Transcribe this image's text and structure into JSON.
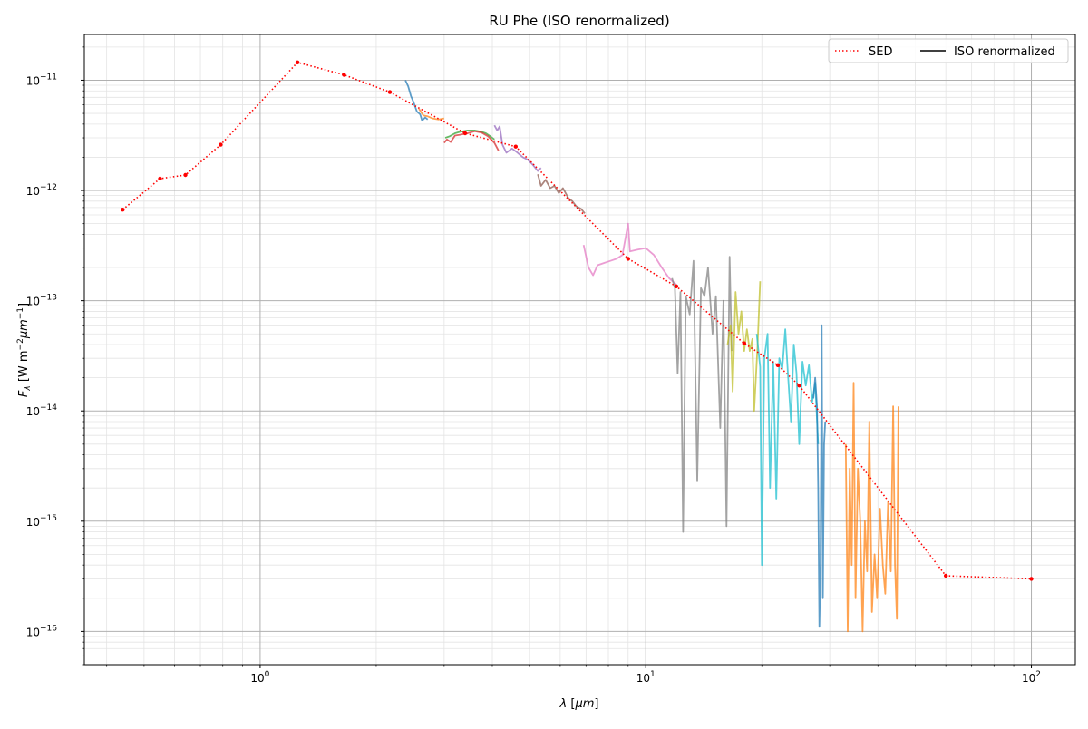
{
  "chart_data": {
    "type": "line",
    "title": "RU Phe (ISO renormalized)",
    "xlabel": "λ [μm]",
    "ylabel": "F_λ [W m^-2 μm^-1]",
    "x_scale": "log",
    "y_scale": "log",
    "xlim": [
      0.35,
      130
    ],
    "ylim": [
      5e-17,
      2.6e-11
    ],
    "grid": true,
    "x_ticks": [
      {
        "value": 1,
        "base": "10",
        "exp": "0"
      },
      {
        "value": 10,
        "base": "10",
        "exp": "1"
      },
      {
        "value": 100,
        "base": "10",
        "exp": "2"
      }
    ],
    "y_ticks": [
      {
        "value": 1e-16,
        "base": "10",
        "exp": "−16"
      },
      {
        "value": 1e-15,
        "base": "10",
        "exp": "−15"
      },
      {
        "value": 1e-14,
        "base": "10",
        "exp": "−14"
      },
      {
        "value": 1e-13,
        "base": "10",
        "exp": "−13"
      },
      {
        "value": 1e-12,
        "base": "10",
        "exp": "−12"
      },
      {
        "value": 1e-11,
        "base": "10",
        "exp": "−11"
      }
    ],
    "legend": {
      "placement": "top-right",
      "entries": [
        {
          "label": "SED",
          "style": "dotted",
          "color": "#ff0000"
        },
        {
          "label": "ISO renormalized",
          "style": "solid",
          "color": "#000000"
        }
      ]
    },
    "sed": {
      "name": "SED",
      "color": "#ff0000",
      "points": [
        [
          0.44,
          6.7e-13
        ],
        [
          0.55,
          1.28e-12
        ],
        [
          0.64,
          1.38e-12
        ],
        [
          0.79,
          2.6e-12
        ],
        [
          1.25,
          1.45e-11
        ],
        [
          1.65,
          1.12e-11
        ],
        [
          2.17,
          7.8e-12
        ],
        [
          3.4,
          3.3e-12
        ],
        [
          4.6,
          2.5e-12
        ],
        [
          9.0,
          2.4e-13
        ],
        [
          12.0,
          1.35e-13
        ],
        [
          18.0,
          4.1e-14
        ],
        [
          22.0,
          2.6e-14
        ],
        [
          25.0,
          1.7e-14
        ],
        [
          60.0,
          3.2e-16
        ],
        [
          100.0,
          3e-16
        ]
      ]
    },
    "iso_segments": [
      {
        "color": "#1f77b4",
        "points": [
          [
            2.38,
            1e-11
          ],
          [
            2.42,
            8.8e-12
          ],
          [
            2.46,
            7.2e-12
          ],
          [
            2.5,
            6.3e-12
          ],
          [
            2.55,
            5.2e-12
          ],
          [
            2.6,
            4.9e-12
          ],
          [
            2.63,
            4.3e-12
          ],
          [
            2.68,
            4.6e-12
          ],
          [
            2.72,
            4.4e-12
          ]
        ]
      },
      {
        "color": "#ff7f0e",
        "points": [
          [
            2.58,
            5.5e-12
          ],
          [
            2.65,
            4.8e-12
          ],
          [
            2.72,
            4.7e-12
          ],
          [
            2.8,
            4.5e-12
          ],
          [
            2.9,
            4.4e-12
          ],
          [
            3.0,
            4.5e-12
          ]
        ]
      },
      {
        "color": "#2ca02c",
        "points": [
          [
            3.02,
            3e-12
          ],
          [
            3.1,
            3.1e-12
          ],
          [
            3.2,
            3.3e-12
          ],
          [
            3.3,
            3.4e-12
          ],
          [
            3.45,
            3.5e-12
          ],
          [
            3.6,
            3.5e-12
          ],
          [
            3.75,
            3.4e-12
          ],
          [
            3.85,
            3.3e-12
          ],
          [
            3.95,
            3.1e-12
          ],
          [
            4.05,
            2.9e-12
          ]
        ]
      },
      {
        "color": "#d62728",
        "points": [
          [
            3.0,
            2.7e-12
          ],
          [
            3.05,
            2.9e-12
          ],
          [
            3.12,
            2.75e-12
          ],
          [
            3.2,
            3.15e-12
          ],
          [
            3.3,
            3.2e-12
          ],
          [
            3.45,
            3.3e-12
          ],
          [
            3.6,
            3.45e-12
          ],
          [
            3.75,
            3.35e-12
          ],
          [
            3.9,
            3.1e-12
          ],
          [
            4.05,
            2.7e-12
          ],
          [
            4.15,
            2.3e-12
          ]
        ]
      },
      {
        "color": "#9467bd",
        "points": [
          [
            4.05,
            3.9e-12
          ],
          [
            4.12,
            3.5e-12
          ],
          [
            4.18,
            3.8e-12
          ],
          [
            4.25,
            2.6e-12
          ],
          [
            4.35,
            2.2e-12
          ],
          [
            4.5,
            2.4e-12
          ],
          [
            4.65,
            2.2e-12
          ],
          [
            4.8,
            2e-12
          ],
          [
            4.95,
            1.9e-12
          ],
          [
            5.1,
            1.7e-12
          ],
          [
            5.25,
            1.5e-12
          ],
          [
            5.35,
            1.6e-12
          ]
        ]
      },
      {
        "color": "#8c564b",
        "points": [
          [
            5.25,
            1.4e-12
          ],
          [
            5.35,
            1.1e-12
          ],
          [
            5.5,
            1.25e-12
          ],
          [
            5.65,
            1.05e-12
          ],
          [
            5.8,
            1.1e-12
          ],
          [
            5.95,
            9.5e-13
          ],
          [
            6.1,
            1.05e-12
          ],
          [
            6.3,
            8.5e-13
          ],
          [
            6.45,
            8e-13
          ],
          [
            6.6,
            7.2e-13
          ],
          [
            6.8,
            6.8e-13
          ],
          [
            6.95,
            6.2e-13
          ]
        ]
      },
      {
        "color": "#e377c2",
        "points": [
          [
            6.9,
            3.2e-13
          ],
          [
            7.1,
            2e-13
          ],
          [
            7.3,
            1.7e-13
          ],
          [
            7.5,
            2.1e-13
          ],
          [
            7.8,
            2.2e-13
          ],
          [
            8.1,
            2.3e-13
          ],
          [
            8.4,
            2.4e-13
          ],
          [
            8.7,
            2.6e-13
          ],
          [
            9.0,
            5e-13
          ],
          [
            9.1,
            2.8e-13
          ],
          [
            9.5,
            2.9e-13
          ],
          [
            10.0,
            3e-13
          ],
          [
            10.5,
            2.6e-13
          ],
          [
            11.0,
            2e-13
          ],
          [
            11.5,
            1.6e-13
          ],
          [
            12.0,
            1.4e-13
          ]
        ]
      },
      {
        "color": "#7f7f7f",
        "points": [
          [
            11.7,
            1.6e-13
          ],
          [
            11.9,
            1.3e-13
          ],
          [
            12.1,
            2.2e-14
          ],
          [
            12.3,
            1.2e-13
          ],
          [
            12.5,
            8e-16
          ],
          [
            12.7,
            1.1e-13
          ],
          [
            13.0,
            7.5e-14
          ],
          [
            13.3,
            2.3e-13
          ],
          [
            13.6,
            2.3e-15
          ],
          [
            13.9,
            1.3e-13
          ],
          [
            14.2,
            1.1e-13
          ],
          [
            14.5,
            2e-13
          ],
          [
            14.9,
            5e-14
          ],
          [
            15.2,
            1.1e-13
          ],
          [
            15.6,
            7e-15
          ],
          [
            15.9,
            1e-13
          ],
          [
            16.2,
            9e-16
          ],
          [
            16.5,
            2.5e-13
          ],
          [
            16.7,
            3.5e-14
          ]
        ]
      },
      {
        "color": "#bcbd22",
        "points": [
          [
            16.3,
            4e-14
          ],
          [
            16.6,
            6e-14
          ],
          [
            16.8,
            1.5e-14
          ],
          [
            17.1,
            1.2e-13
          ],
          [
            17.4,
            5e-14
          ],
          [
            17.7,
            8e-14
          ],
          [
            18.0,
            3.5e-14
          ],
          [
            18.3,
            5.5e-14
          ],
          [
            18.6,
            3.5e-14
          ],
          [
            18.9,
            4.5e-14
          ],
          [
            19.1,
            1e-14
          ],
          [
            19.5,
            4e-14
          ],
          [
            19.8,
            1.5e-13
          ]
        ]
      },
      {
        "color": "#17becf",
        "points": [
          [
            19.4,
            5e-14
          ],
          [
            19.8,
            2.5e-14
          ],
          [
            20.0,
            4e-16
          ],
          [
            20.3,
            3e-14
          ],
          [
            20.7,
            5e-14
          ],
          [
            21.0,
            2e-15
          ],
          [
            21.4,
            2.8e-14
          ],
          [
            21.8,
            1.6e-15
          ],
          [
            22.2,
            3e-14
          ],
          [
            22.6,
            2.4e-14
          ],
          [
            23.0,
            5.5e-14
          ],
          [
            23.4,
            2e-14
          ],
          [
            23.8,
            8e-15
          ],
          [
            24.2,
            4e-14
          ],
          [
            24.6,
            2.2e-14
          ],
          [
            25.0,
            5e-15
          ],
          [
            25.5,
            2.8e-14
          ],
          [
            26.0,
            1.7e-14
          ],
          [
            26.5,
            2.6e-14
          ],
          [
            27.0,
            1.2e-14
          ],
          [
            27.5,
            1.8e-14
          ],
          [
            28.0,
            5e-15
          ]
        ]
      },
      {
        "color": "#1f77b4",
        "points": [
          [
            27.2,
            1.3e-14
          ],
          [
            27.5,
            2e-14
          ],
          [
            27.8,
            1.1e-14
          ],
          [
            28.0,
            2e-15
          ],
          [
            28.2,
            1.1e-16
          ],
          [
            28.4,
            4e-16
          ],
          [
            28.6,
            6e-14
          ],
          [
            28.8,
            2e-16
          ],
          [
            29.0,
            5e-15
          ],
          [
            29.2,
            8e-15
          ]
        ]
      },
      {
        "color": "#ff7f0e",
        "points": [
          [
            33.0,
            5e-15
          ],
          [
            33.4,
            1e-16
          ],
          [
            33.8,
            3e-15
          ],
          [
            34.2,
            4e-16
          ],
          [
            34.6,
            1.8e-14
          ],
          [
            35.0,
            2e-16
          ],
          [
            35.5,
            3e-15
          ],
          [
            36.0,
            1e-15
          ],
          [
            36.5,
            1e-16
          ],
          [
            37.0,
            1e-15
          ],
          [
            37.5,
            3.5e-16
          ],
          [
            38.0,
            8e-15
          ],
          [
            38.6,
            1.5e-16
          ],
          [
            39.2,
            5e-16
          ],
          [
            39.8,
            2e-16
          ],
          [
            40.5,
            1.3e-15
          ],
          [
            41.2,
            4e-16
          ],
          [
            41.8,
            2.2e-16
          ],
          [
            42.5,
            1.5e-15
          ],
          [
            43.2,
            3.5e-16
          ],
          [
            43.8,
            1.1e-14
          ],
          [
            44.3,
            4e-16
          ],
          [
            44.8,
            1.3e-16
          ],
          [
            45.2,
            1.1e-14
          ]
        ]
      }
    ]
  }
}
